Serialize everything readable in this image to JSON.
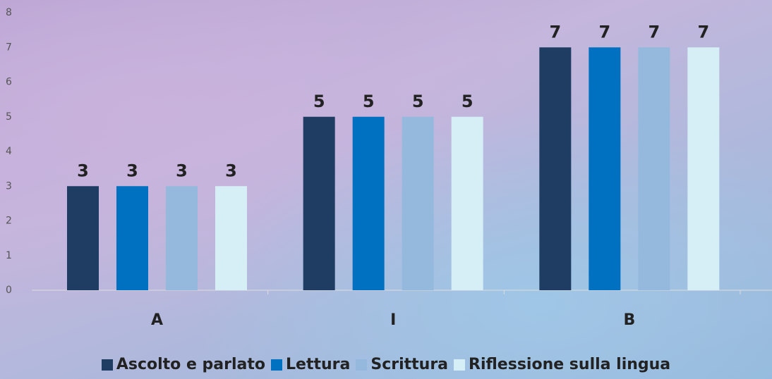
{
  "chart_data": {
    "type": "bar",
    "categories": [
      "A",
      "I",
      "B"
    ],
    "series": [
      {
        "name": "Ascolto e parlato",
        "color": "#1f3d63",
        "values": [
          3,
          5,
          7
        ]
      },
      {
        "name": "Lettura",
        "color": "#0070c0",
        "values": [
          3,
          5,
          7
        ]
      },
      {
        "name": "Scrittura",
        "color": "#95b9dd",
        "values": [
          3,
          5,
          7
        ]
      },
      {
        "name": "Riflessione sulla lingua",
        "color": "#d6eef5",
        "values": [
          3,
          5,
          7
        ]
      }
    ],
    "ylim": [
      0,
      8
    ],
    "yticks": [
      0,
      1,
      2,
      3,
      4,
      5,
      6,
      7,
      8
    ],
    "data_labels": true
  }
}
